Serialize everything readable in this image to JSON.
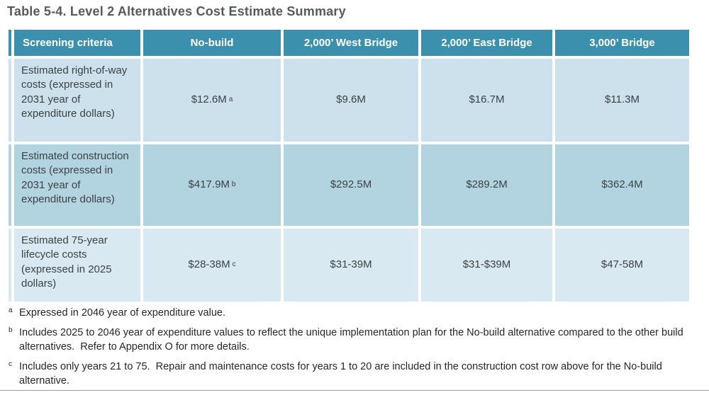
{
  "title": "Table 5-4. Level 2 Alternatives Cost Estimate Summary",
  "table": {
    "header": [
      "Screening criteria",
      "No-build",
      "2,000’ West Bridge",
      "2,000’ East Bridge",
      "3,000’ Bridge"
    ],
    "rows": [
      {
        "criteria": "Estimated right-of-way costs (expressed in 2031 year of expenditure dollars)",
        "values": [
          {
            "text": "$12.6M",
            "note": "a"
          },
          {
            "text": "$9.6M",
            "note": ""
          },
          {
            "text": "$16.7M",
            "note": ""
          },
          {
            "text": "$11.3M",
            "note": ""
          }
        ]
      },
      {
        "criteria": "Estimated construction costs (expressed in 2031 year of expenditure dollars)",
        "values": [
          {
            "text": "$417.9M",
            "note": "b"
          },
          {
            "text": "$292.5M",
            "note": ""
          },
          {
            "text": "$289.2M",
            "note": ""
          },
          {
            "text": "$362.4M",
            "note": ""
          }
        ]
      },
      {
        "criteria": "Estimated 75-year lifecycle costs (expressed in 2025 dollars)",
        "values": [
          {
            "text": "$28-38M",
            "note": "c"
          },
          {
            "text": "$31-39M",
            "note": ""
          },
          {
            "text": "$31-$39M",
            "note": ""
          },
          {
            "text": "$47-58M",
            "note": ""
          }
        ]
      }
    ]
  },
  "footnotes": [
    {
      "marker": "a",
      "text": "Expressed in 2046 year of expenditure value."
    },
    {
      "marker": "b",
      "text": "Includes 2025 to 2046 year of expenditure values to reflect the unique implementation plan for the No-build alternative compared to the other build alternatives.  Refer to Appendix O for more details."
    },
    {
      "marker": "c",
      "text": "Includes only years 21 to 75.  Repair and maintenance costs for years 1 to 20 are included in the construction cost row above for the No-build alternative."
    }
  ],
  "colors": {
    "header_bg": "#3b91ad",
    "header_text": "#ffffff",
    "row1_bg": "#cce1eb",
    "row2_bg": "#b2d3e0",
    "row3_bg": "#d9e9f1",
    "title_text": "#58595b",
    "cell_text": "#3d4245"
  }
}
